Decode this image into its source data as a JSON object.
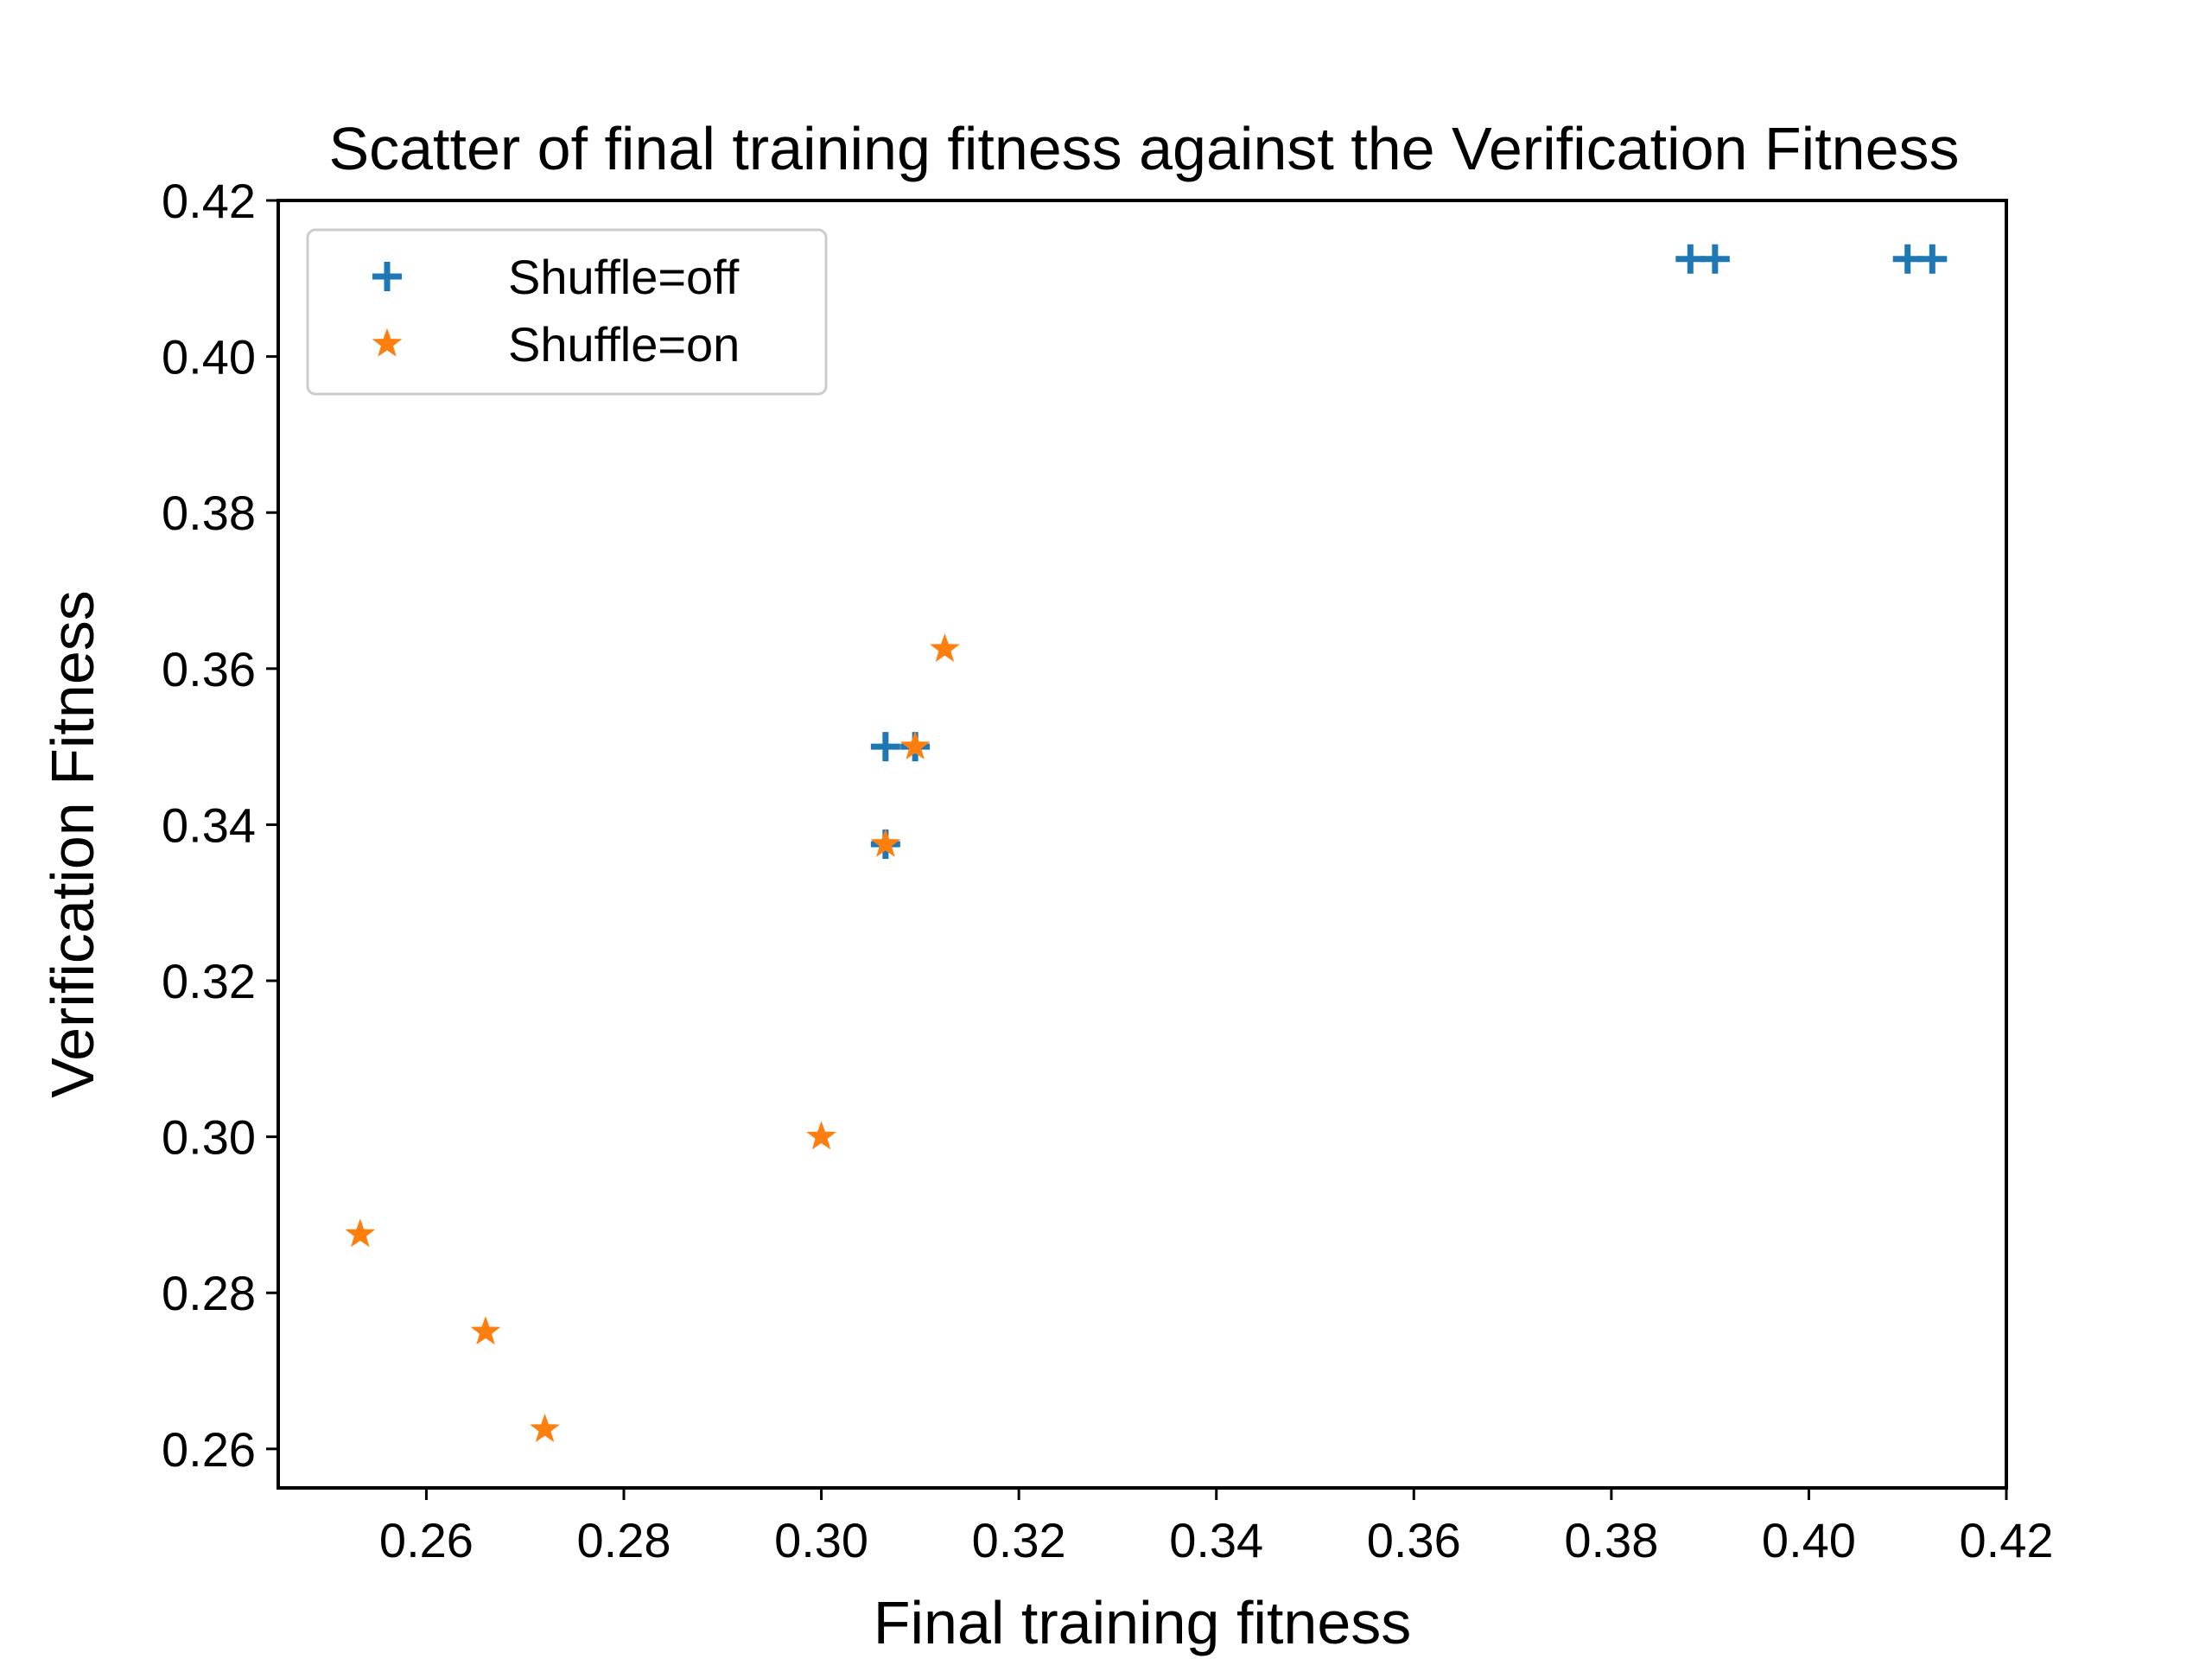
{
  "chart_data": {
    "type": "scatter",
    "title": "Scatter of final training fitness against the Verification Fitness",
    "xlabel": "Final training fitness",
    "ylabel": "Verification Fitness",
    "xlim": [
      0.245,
      0.42
    ],
    "ylim": [
      0.255,
      0.42
    ],
    "xticks": [
      0.26,
      0.28,
      0.3,
      0.32,
      0.34,
      0.36,
      0.38,
      0.4,
      0.42
    ],
    "yticks": [
      0.26,
      0.28,
      0.3,
      0.32,
      0.34,
      0.36,
      0.38,
      0.4,
      0.42
    ],
    "tick_format_decimals": 2,
    "grid": false,
    "legend_position": "top-left",
    "series": [
      {
        "name": "Shuffle=off",
        "marker": "plus",
        "color": "#1f77b4",
        "points": [
          {
            "x": 0.388,
            "y": 0.4125
          },
          {
            "x": 0.3905,
            "y": 0.4125
          },
          {
            "x": 0.41,
            "y": 0.4125
          },
          {
            "x": 0.4125,
            "y": 0.4125
          },
          {
            "x": 0.3065,
            "y": 0.35
          },
          {
            "x": 0.3095,
            "y": 0.35
          },
          {
            "x": 0.3065,
            "y": 0.3375
          }
        ]
      },
      {
        "name": "Shuffle=on",
        "marker": "star",
        "color": "#ff7f0e",
        "points": [
          {
            "x": 0.3125,
            "y": 0.3625
          },
          {
            "x": 0.3095,
            "y": 0.35
          },
          {
            "x": 0.3065,
            "y": 0.3375
          },
          {
            "x": 0.3,
            "y": 0.3
          },
          {
            "x": 0.2533,
            "y": 0.2875
          },
          {
            "x": 0.266,
            "y": 0.275
          },
          {
            "x": 0.272,
            "y": 0.2625
          }
        ]
      }
    ]
  }
}
